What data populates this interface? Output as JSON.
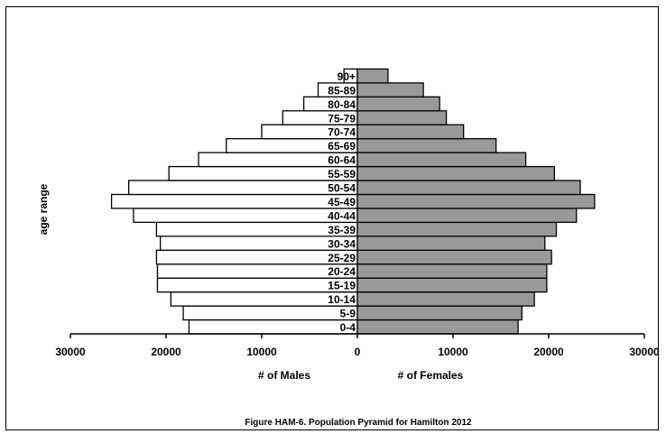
{
  "chart_data": {
    "type": "bar",
    "orientation": "horizontal-pyramid",
    "title": "Figure HAM-6.  Population Pyramid for Hamilton 2012",
    "ylabel": "age range",
    "xlabel_left": "# of Males",
    "xlabel_right": "# of  Females",
    "xlim": [
      -30000,
      30000
    ],
    "x_ticks": [
      "30000",
      "20000",
      "10000",
      "0",
      "10000",
      "20000",
      "30000"
    ],
    "categories": [
      "0-4",
      "5-9",
      "10-14",
      "15-19",
      "20-24",
      "25-29",
      "30-34",
      "35-39",
      "40-44",
      "45-49",
      "50-54",
      "55-59",
      "60-64",
      "65-69",
      "70-74",
      "75-79",
      "80-84",
      "85-89",
      "90+"
    ],
    "series": [
      {
        "name": "# of Males",
        "color": "#ffffff",
        "values": [
          17600,
          18200,
          19500,
          20900,
          20900,
          21000,
          20600,
          21000,
          23400,
          25700,
          23900,
          19700,
          16600,
          13700,
          10000,
          7800,
          5600,
          4100,
          1400
        ]
      },
      {
        "name": "# of  Females",
        "color": "#999999",
        "values": [
          16800,
          17200,
          18500,
          19800,
          19800,
          20300,
          19600,
          20800,
          22900,
          24800,
          23300,
          20600,
          17600,
          14500,
          11100,
          9300,
          8600,
          6900,
          3200
        ]
      }
    ],
    "grid": false
  }
}
